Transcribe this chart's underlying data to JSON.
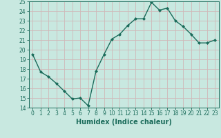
{
  "x": [
    0,
    1,
    2,
    3,
    4,
    5,
    6,
    7,
    8,
    9,
    10,
    11,
    12,
    13,
    14,
    15,
    16,
    17,
    18,
    19,
    20,
    21,
    22,
    23
  ],
  "y": [
    19.5,
    17.7,
    17.2,
    16.5,
    15.7,
    14.9,
    15.0,
    14.2,
    17.8,
    19.5,
    21.1,
    21.6,
    22.5,
    23.2,
    23.2,
    24.9,
    24.1,
    24.3,
    23.0,
    22.4,
    21.6,
    20.7,
    20.7,
    21.0
  ],
  "line_color": "#1a6b5a",
  "marker": "D",
  "marker_size": 2.0,
  "bg_color": "#c8e8e0",
  "grid_color": "#d0b8b8",
  "xlabel": "Humidex (Indice chaleur)",
  "ylim": [
    14,
    25
  ],
  "xlim": [
    -0.5,
    23.5
  ],
  "yticks": [
    14,
    15,
    16,
    17,
    18,
    19,
    20,
    21,
    22,
    23,
    24,
    25
  ],
  "xticks": [
    0,
    1,
    2,
    3,
    4,
    5,
    6,
    7,
    8,
    9,
    10,
    11,
    12,
    13,
    14,
    15,
    16,
    17,
    18,
    19,
    20,
    21,
    22,
    23
  ],
  "tick_label_fontsize": 5.5,
  "xlabel_fontsize": 7.0,
  "line_width": 1.0
}
